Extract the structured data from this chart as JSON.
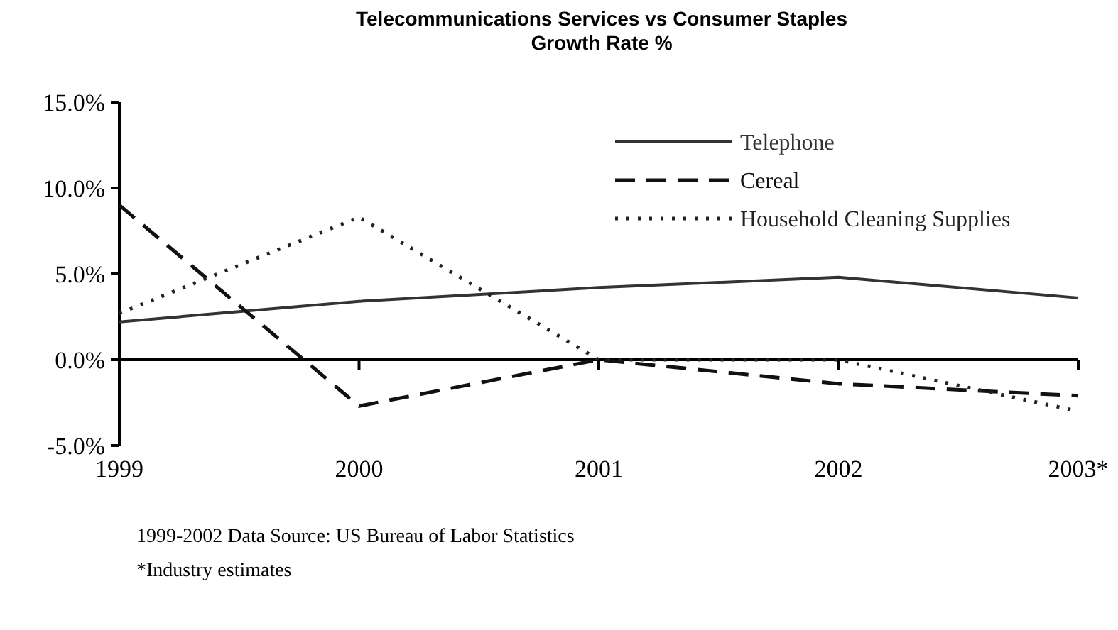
{
  "chart_data": {
    "type": "line",
    "title": "Telecommunications Services vs Consumer Staples\nGrowth Rate %",
    "categories": [
      "1999",
      "2000",
      "2001",
      "2002",
      "2003*"
    ],
    "series": [
      {
        "name": "Telephone",
        "color": "#333333",
        "values": [
          2.2,
          3.4,
          4.2,
          4.8,
          3.6
        ],
        "line_style": "solid"
      },
      {
        "name": "Cereal",
        "color": "#111111",
        "values": [
          9.0,
          -2.7,
          0.0,
          -1.4,
          -2.1
        ],
        "line_style": "dashed"
      },
      {
        "name": "Household Cleaning Supplies",
        "color": "#222222",
        "values": [
          2.7,
          8.3,
          0.0,
          0.0,
          -3.0
        ],
        "line_style": "dotted"
      }
    ],
    "ylim": [
      -5,
      15
    ],
    "yticks": [
      {
        "value": -5,
        "label": "-5.0%"
      },
      {
        "value": 0,
        "label": "0.0%"
      },
      {
        "value": 5,
        "label": "5.0%"
      },
      {
        "value": 10,
        "label": "10.0%"
      },
      {
        "value": 15,
        "label": "15.0%"
      }
    ],
    "legend": "top right",
    "annotations": [
      "1999-2002 Data Source: US Bureau of Labor Statistics",
      "*Industry estimates"
    ]
  }
}
